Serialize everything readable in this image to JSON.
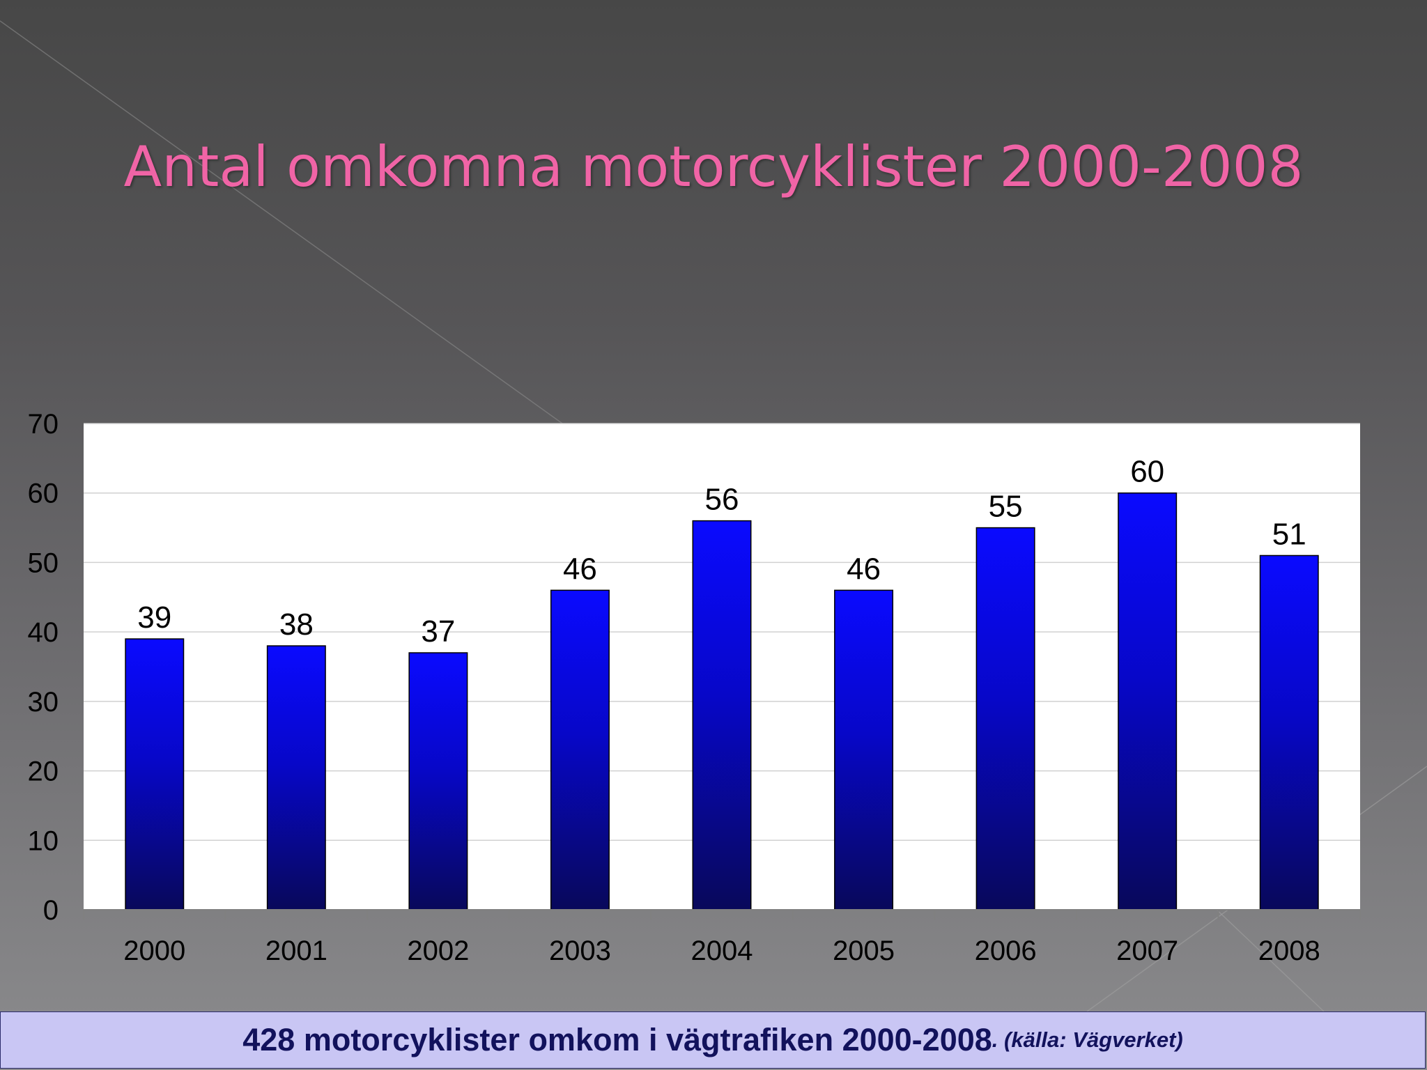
{
  "slide": {
    "title": "Antal omkomna motorcyklister 2000-2008",
    "footer_main": "428 motorcyklister omkom i vägtrafiken 2000-2008",
    "footer_source": ". (källa: Vägverket)"
  },
  "colors": {
    "title": "#f064a6",
    "bar_top": "#0a0aff",
    "bar_bottom": "#08085a",
    "plot_background": "#ffffff",
    "gridline": "#d0d0d0",
    "footer_background": "#c9c6f4",
    "footer_text": "#12125c"
  },
  "chart_data": {
    "type": "bar",
    "title": "",
    "xlabel": "",
    "ylabel": "",
    "categories": [
      "2000",
      "2001",
      "2002",
      "2003",
      "2004",
      "2005",
      "2006",
      "2007",
      "2008"
    ],
    "values": [
      39,
      38,
      37,
      46,
      56,
      46,
      55,
      60,
      51
    ],
    "data_labels": [
      "39",
      "38",
      "37",
      "46",
      "56",
      "46",
      "55",
      "60",
      "51"
    ],
    "ylim": [
      0,
      70
    ],
    "yticks": [
      0,
      10,
      20,
      30,
      40,
      50,
      60,
      70
    ],
    "ytick_labels": [
      "0",
      "10",
      "20",
      "30",
      "40",
      "50",
      "60",
      "70"
    ],
    "grid": true,
    "legend": "none"
  }
}
